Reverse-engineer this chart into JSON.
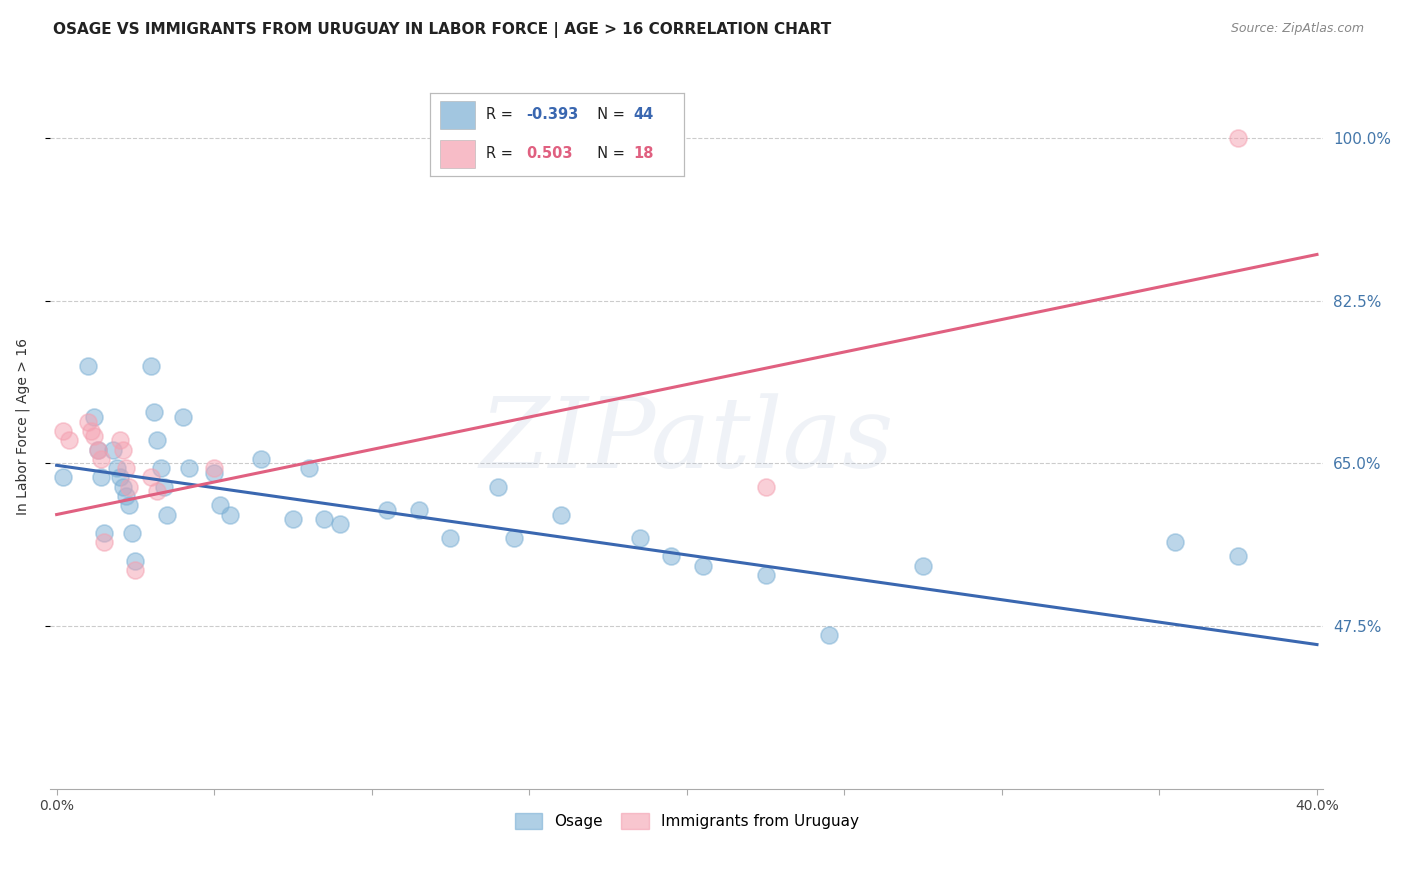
{
  "title": "OSAGE VS IMMIGRANTS FROM URUGUAY IN LABOR FORCE | AGE > 16 CORRELATION CHART",
  "source": "Source: ZipAtlas.com",
  "ylabel": "In Labor Force | Age > 16",
  "xlim": [
    -0.002,
    0.402
  ],
  "ylim": [
    0.3,
    1.08
  ],
  "ytick_vals": [
    0.475,
    0.65,
    0.825,
    1.0
  ],
  "ytick_labels": [
    "47.5%",
    "65.0%",
    "82.5%",
    "100.0%"
  ],
  "xtick_vals": [
    0.0,
    0.05,
    0.1,
    0.15,
    0.2,
    0.25,
    0.3,
    0.35,
    0.4
  ],
  "xtick_labels": [
    "0.0%",
    "",
    "",
    "",
    "",
    "",
    "",
    "",
    "40.0%"
  ],
  "grid_color": "#cccccc",
  "watermark_text": "ZIPatlas",
  "legend_R_blue": "-0.393",
  "legend_N_blue": "44",
  "legend_R_pink": "0.503",
  "legend_N_pink": "18",
  "blue_color": "#7BAFD4",
  "pink_color": "#F4A0B0",
  "blue_line_color": "#3A67B0",
  "pink_line_color": "#E06080",
  "blue_marker_edge": "#7BAFD4",
  "pink_marker_edge": "#F4A0B0",
  "osage_x": [
    0.002,
    0.01,
    0.012,
    0.013,
    0.014,
    0.015,
    0.018,
    0.019,
    0.02,
    0.021,
    0.022,
    0.023,
    0.024,
    0.025,
    0.03,
    0.031,
    0.032,
    0.033,
    0.034,
    0.035,
    0.04,
    0.042,
    0.05,
    0.052,
    0.055,
    0.065,
    0.075,
    0.08,
    0.085,
    0.09,
    0.105,
    0.115,
    0.125,
    0.14,
    0.145,
    0.16,
    0.185,
    0.195,
    0.205,
    0.225,
    0.245,
    0.275,
    0.355,
    0.375
  ],
  "osage_y": [
    0.635,
    0.755,
    0.7,
    0.665,
    0.635,
    0.575,
    0.665,
    0.645,
    0.635,
    0.625,
    0.615,
    0.605,
    0.575,
    0.545,
    0.755,
    0.705,
    0.675,
    0.645,
    0.625,
    0.595,
    0.7,
    0.645,
    0.64,
    0.605,
    0.595,
    0.655,
    0.59,
    0.645,
    0.59,
    0.585,
    0.6,
    0.6,
    0.57,
    0.625,
    0.57,
    0.595,
    0.57,
    0.55,
    0.54,
    0.53,
    0.465,
    0.54,
    0.565,
    0.55
  ],
  "uruguay_x": [
    0.002,
    0.004,
    0.01,
    0.011,
    0.012,
    0.013,
    0.014,
    0.015,
    0.02,
    0.021,
    0.022,
    0.023,
    0.025,
    0.03,
    0.032,
    0.05,
    0.225,
    0.375
  ],
  "uruguay_y": [
    0.685,
    0.675,
    0.695,
    0.685,
    0.68,
    0.665,
    0.655,
    0.565,
    0.675,
    0.665,
    0.645,
    0.625,
    0.535,
    0.635,
    0.62,
    0.645,
    0.625,
    1.0
  ],
  "blue_line_x0": 0.0,
  "blue_line_x1": 0.4,
  "blue_line_y0": 0.648,
  "blue_line_y1": 0.455,
  "pink_line_x0": 0.0,
  "pink_line_x1": 0.4,
  "pink_line_y0": 0.595,
  "pink_line_y1": 0.875,
  "title_fontsize": 11,
  "source_fontsize": 9,
  "tick_color": "#4477AA",
  "ylabel_color": "#333333"
}
